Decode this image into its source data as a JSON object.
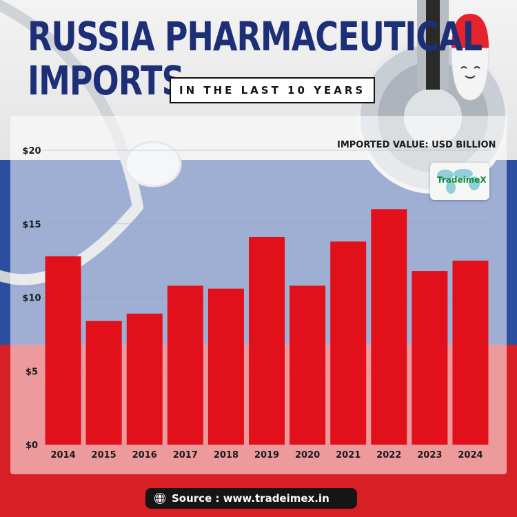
{
  "header": {
    "title_line1": "RUSSIA PHARMACEUTICAL",
    "title_line2": "IMPORTS",
    "subtitle": "IN THE LAST 10 YEARS"
  },
  "value_note": "IMPORTED VALUE: USD BILLION",
  "logo": {
    "text": "TradeimeX",
    "icon": "world-map-logo"
  },
  "source": {
    "icon": "globe-icon",
    "text": "Source : www.tradeimex.in"
  },
  "colors": {
    "bar": "#e2101b",
    "title": "#1d2f77",
    "flag_blue": "#2c4ea0",
    "flag_red": "#d81f26"
  },
  "chart_data": {
    "type": "bar",
    "categories": [
      "2014",
      "2015",
      "2016",
      "2017",
      "2018",
      "2019",
      "2020",
      "2021",
      "2022",
      "2023",
      "2024"
    ],
    "values": [
      12.8,
      8.4,
      8.9,
      10.8,
      10.6,
      14.1,
      10.8,
      13.8,
      16.0,
      11.8,
      12.5
    ],
    "ylim": [
      0,
      20
    ],
    "yticks": [
      0,
      5,
      10,
      15,
      20
    ],
    "ytick_labels": [
      "$0",
      "$5",
      "$10",
      "$15",
      "$20"
    ],
    "grid": true,
    "legend": "none"
  }
}
